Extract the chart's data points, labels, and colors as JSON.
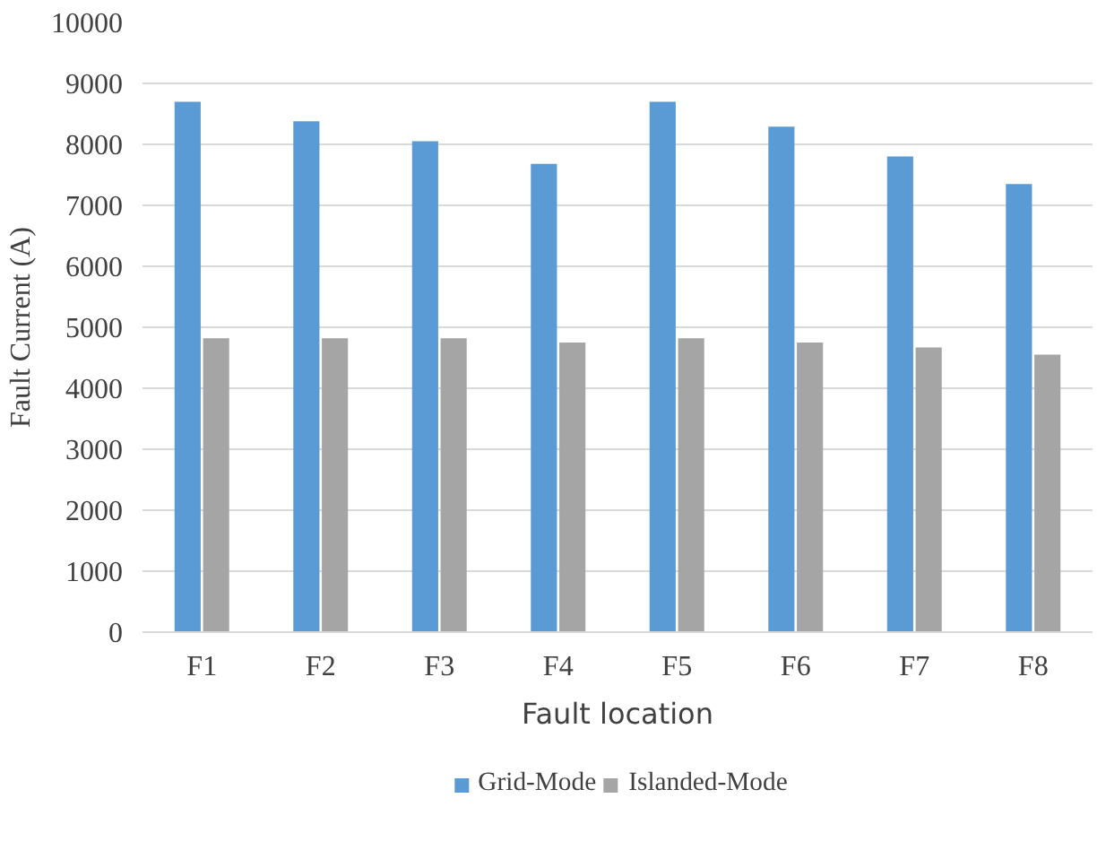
{
  "chart_data": {
    "type": "bar",
    "xlabel": "Fault location",
    "ylabel": "Fault Current (A)",
    "categories": [
      "F1",
      "F2",
      "F3",
      "F4",
      "F5",
      "F6",
      "F7",
      "F8"
    ],
    "series": [
      {
        "name": "Grid-Mode",
        "color": "#5b9bd5",
        "values": [
          8700,
          8380,
          8050,
          7680,
          8700,
          8290,
          7800,
          7350
        ]
      },
      {
        "name": "Islanded-Mode",
        "color": "#a5a5a5",
        "values": [
          4820,
          4820,
          4820,
          4750,
          4820,
          4750,
          4670,
          4550
        ]
      }
    ],
    "ylim": [
      0,
      10000
    ],
    "yticks": [
      0,
      1000,
      2000,
      3000,
      4000,
      5000,
      6000,
      7000,
      8000,
      9000,
      10000
    ],
    "grid": "y",
    "legend": "bottom"
  }
}
